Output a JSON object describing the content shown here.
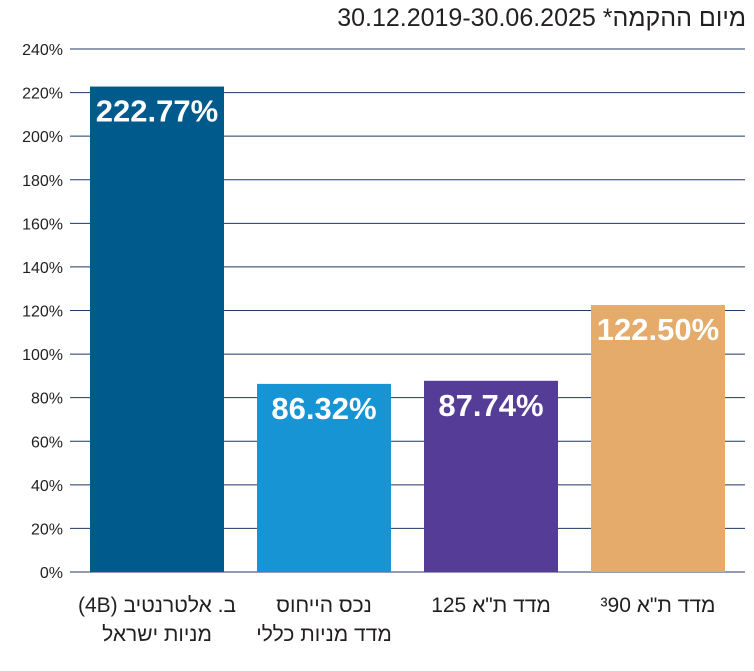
{
  "title": "מיום ההקמה* 30.12.2019-30.06.2025",
  "chart_data": {
    "type": "bar",
    "title": "מיום ההקמה* 30.12.2019-30.06.2025",
    "ylim": [
      0,
      240
    ],
    "yticks": [
      "0%",
      "20%",
      "40%",
      "60%",
      "80%",
      "100%",
      "120%",
      "140%",
      "160%",
      "180%",
      "200%",
      "220%",
      "240%"
    ],
    "grid": true,
    "categories": [
      [
        "ב. אלטרנטיב (4B)",
        "מניות ישראל"
      ],
      [
        "נכס הייחוס",
        "מדד מניות כללי"
      ],
      [
        "מדד ת\"א 125"
      ],
      [
        "מדד ת\"א ³90"
      ]
    ],
    "values": [
      222.77,
      86.32,
      87.74,
      122.5
    ],
    "value_labels": [
      "222.77%",
      "86.32%",
      "87.74%",
      "122.50%"
    ],
    "colors": [
      "#005a8b",
      "#1694d3",
      "#553d97",
      "#e5ab6a"
    ]
  }
}
